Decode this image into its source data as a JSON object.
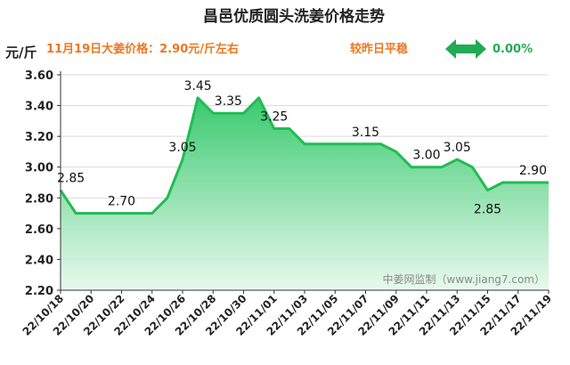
{
  "chart_data": {
    "type": "area",
    "title": "昌邑优质圆头洗姜价格走势",
    "ylabel": "元/斤",
    "ylim": [
      2.2,
      3.6
    ],
    "yticks": [
      "2.20",
      "2.40",
      "2.60",
      "2.80",
      "3.00",
      "3.20",
      "3.40",
      "3.60"
    ],
    "xticks": [
      "22/10/18",
      "22/10/20",
      "22/10/22",
      "22/10/24",
      "22/10/26",
      "22/10/28",
      "22/10/30",
      "22/11/01",
      "22/11/03",
      "22/11/05",
      "22/11/07",
      "22/11/09",
      "22/11/11",
      "22/11/13",
      "22/11/15",
      "22/11/17",
      "22/11/19"
    ],
    "x": [
      "22/10/18",
      "22/10/19",
      "22/10/20",
      "22/10/21",
      "22/10/22",
      "22/10/23",
      "22/10/24",
      "22/10/25",
      "22/10/26",
      "22/10/27",
      "22/10/28",
      "22/10/29",
      "22/10/30",
      "22/10/31",
      "22/11/01",
      "22/11/02",
      "22/11/03",
      "22/11/04",
      "22/11/05",
      "22/11/06",
      "22/11/07",
      "22/11/08",
      "22/11/09",
      "22/11/10",
      "22/11/11",
      "22/11/12",
      "22/11/13",
      "22/11/14",
      "22/11/15",
      "22/11/16",
      "22/11/17",
      "22/11/18",
      "22/11/19"
    ],
    "values": [
      2.85,
      2.7,
      2.7,
      2.7,
      2.7,
      2.7,
      2.7,
      2.8,
      3.05,
      3.45,
      3.35,
      3.35,
      3.35,
      3.45,
      3.25,
      3.25,
      3.15,
      3.15,
      3.15,
      3.15,
      3.15,
      3.15,
      3.1,
      3.0,
      3.0,
      3.0,
      3.05,
      3.0,
      2.85,
      2.9,
      2.9,
      2.9,
      2.9
    ],
    "data_labels": [
      {
        "index": 0,
        "text": "2.85"
      },
      {
        "index": 4,
        "text": "2.70"
      },
      {
        "index": 8,
        "text": "3.05"
      },
      {
        "index": 9,
        "text": "3.45"
      },
      {
        "index": 11,
        "text": "3.35"
      },
      {
        "index": 14,
        "text": "3.25"
      },
      {
        "index": 20,
        "text": "3.15"
      },
      {
        "index": 24,
        "text": "3.00"
      },
      {
        "index": 26,
        "text": "3.05"
      },
      {
        "index": 28,
        "text": "2.85"
      },
      {
        "index": 32,
        "text": "2.90"
      }
    ],
    "line_color": "#22bb55",
    "fill_color": "#33cc66",
    "grid": true
  },
  "info": {
    "price_text": "11月19日大姜价格：2.90元/斤左右",
    "trend_text": "较昨日平稳",
    "change_text": "0.00%",
    "price_color": "#ee7722",
    "trend_color": "#ee7722",
    "arrow_color": "#22aa55",
    "arrow_icon": "double-arrow-icon"
  },
  "watermark": "中姜网监制（www.jiang7.com）"
}
